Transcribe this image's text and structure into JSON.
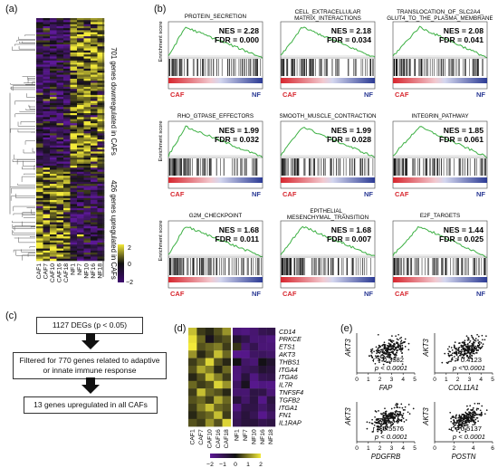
{
  "panels": {
    "a": "(a)",
    "b": "(b)",
    "c": "(c)",
    "d": "(d)",
    "e": "(e)"
  },
  "heatmap_a": {
    "samples": [
      "CAF1",
      "CAF7",
      "CAF10",
      "CAF16",
      "CAF18",
      "NF1",
      "NF7",
      "NF10",
      "NF16",
      "NF18"
    ],
    "group_down_label": "701 genes downregulated in CAFs",
    "group_up_label": "426 genes upregulated in CAFs",
    "colorbar_ticks": [
      "2",
      "0",
      "−2"
    ],
    "colors": {
      "low": "#3d0b6e",
      "mid": "#111111",
      "high": "#f3ea3a"
    }
  },
  "gsea": {
    "y_label": "Enrichment score",
    "left_label": "CAF",
    "right_label": "NF",
    "plots": [
      {
        "title": "PROTEIN_SECRETION",
        "title2": "",
        "nes": "NES = 2.28",
        "fdr": "FDR = 0.000"
      },
      {
        "title": "CELL_EXTRACELLULAR",
        "title2": "MATRIX_INTERACTIONS",
        "nes": "NES = 2.18",
        "fdr": "FDR = 0.034"
      },
      {
        "title": "TRANSLOCATION_OF_SLC2A4_",
        "title2": "GLUT4_TO_THE_PLASMA_MEMBRANE",
        "nes": "NES = 2.08",
        "fdr": "FDR = 0.041"
      },
      {
        "title": "RHO_GTPASE_EFFECTORS",
        "title2": "",
        "nes": "NES = 1.99",
        "fdr": "FDR = 0.032"
      },
      {
        "title": "SMOOTH_MUSCLE_CONTRACTION",
        "title2": "",
        "nes": "NES = 1.99",
        "fdr": "FDR = 0.028"
      },
      {
        "title": "INTEGRIN_PATHWAY",
        "title2": "",
        "nes": "NES = 1.85",
        "fdr": "FDR = 0.061"
      },
      {
        "title": "G2M_CHECKPOINT",
        "title2": "",
        "nes": "NES = 1.68",
        "fdr": "FDR = 0.011"
      },
      {
        "title": "EPITHELIAL_",
        "title2": "MESENCHYMAL_TRANSITION",
        "nes": "NES = 1.68",
        "fdr": "FDR = 0.007"
      },
      {
        "title": "E2F_TARGETS",
        "title2": "",
        "nes": "NES = 1.44",
        "fdr": "FDR = 0.025"
      }
    ],
    "curve_color": "#3cb043"
  },
  "flowchart": {
    "box1": "1127 DEGs (p < 0.05)",
    "box2": "Filtered for 770 genes related to adaptive or innate immune response",
    "box3": "13 genes upregulated in all CAFs"
  },
  "heatmap_d": {
    "genes": [
      "CD14",
      "PRKCE",
      "ETS1",
      "AKT3",
      "THBS1",
      "ITGA4",
      "ITGA6",
      "IL7R",
      "TNFSF4",
      "TGFB2",
      "ITGA1",
      "FN1",
      "IL1RAP"
    ],
    "samples": [
      "CAF1",
      "CAF7",
      "CAF10",
      "CAF16",
      "CAF18",
      "NF1",
      "NF7",
      "NF10",
      "NF16",
      "NF18"
    ],
    "colorbar_ticks": [
      "−2",
      "−1",
      "0",
      "1",
      "2"
    ]
  },
  "chart_data": [
    {
      "type": "scatter",
      "ylabel": "AKT3",
      "xlabel": "FAP",
      "r": "r = 0.3382",
      "p": "p < 0.0001",
      "xticks": [
        "0",
        "1",
        "2",
        "3",
        "4",
        "5"
      ],
      "xlim": [
        0,
        5
      ]
    },
    {
      "type": "scatter",
      "ylabel": "AKT3",
      "xlabel": "COL11A1",
      "r": "r = 0.4123",
      "p": "p < 0.0001",
      "xticks": [
        "0",
        "1",
        "2",
        "3",
        "4",
        "5"
      ],
      "xlim": [
        0,
        5
      ]
    },
    {
      "type": "scatter",
      "ylabel": "AKT3",
      "xlabel": "PDGFRB",
      "r": "r = 0.5576",
      "p": "p < 0.0001",
      "xticks": [
        "0",
        "1",
        "2",
        "3",
        "4",
        "5"
      ],
      "xlim": [
        0,
        5
      ]
    },
    {
      "type": "scatter",
      "ylabel": "AKT3",
      "xlabel": "POSTN",
      "r": "r = 0.5137",
      "p": "p < 0.0001",
      "xticks": [
        "0",
        "2",
        "4",
        "6"
      ],
      "xlim": [
        0,
        6
      ]
    }
  ]
}
